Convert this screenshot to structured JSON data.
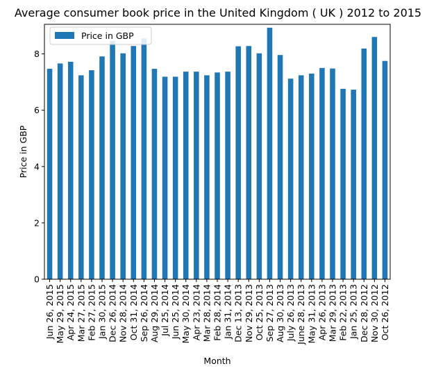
{
  "chart_data": {
    "type": "bar",
    "title": "Average consumer book price in the United Kingdom ( UK ) 2012 to 2015",
    "xlabel": "Month",
    "ylabel": "Price in GBP",
    "ylim": [
      0,
      9.05
    ],
    "yticks": [
      0,
      2,
      4,
      6,
      8
    ],
    "grid": false,
    "legend_position": "top-left",
    "bar_color": "#1f77b4",
    "categories": [
      "Jun 26, 2015",
      "May 29, 2015",
      "Apr 24, 2015",
      "Mar 27, 2015",
      "Feb 27, 2015",
      "Jan 30, 2015",
      "Dec 26, 2014",
      "Nov 28, 2014",
      "Oct 31, 2014",
      "Sep 26, 2014",
      "Aug 29, 2014",
      "Jul 25, 2014",
      "Jun 25, 2014",
      "May 30, 2014",
      "Apr 23, 2014",
      "Mar 28, 2014",
      "Feb 28, 2014",
      "Jan 31, 2014",
      "Dec 13, 2013",
      "Nov 29, 2013",
      "Oct 25, 2013",
      "Sep 27, 2013",
      "Aug 30, 2013",
      "July 26, 2013",
      "June 28, 2013",
      "May 31, 2013",
      "Apr 26, 2013",
      "Mar 29, 2013",
      "Feb 22, 2013",
      "Jan 25, 2013",
      "Dec 28, 2012",
      "Nov 30, 2012",
      "Oct 26, 2012"
    ],
    "series": [
      {
        "name": "Price in GBP",
        "values": [
          7.47,
          7.66,
          7.72,
          7.24,
          7.42,
          7.91,
          8.46,
          8.02,
          8.28,
          8.55,
          7.47,
          7.19,
          7.19,
          7.37,
          7.37,
          7.24,
          7.34,
          7.37,
          8.27,
          8.28,
          8.02,
          8.93,
          7.96,
          7.12,
          7.24,
          7.3,
          7.5,
          7.48,
          6.76,
          6.73,
          8.19,
          8.6,
          7.75
        ]
      }
    ]
  }
}
